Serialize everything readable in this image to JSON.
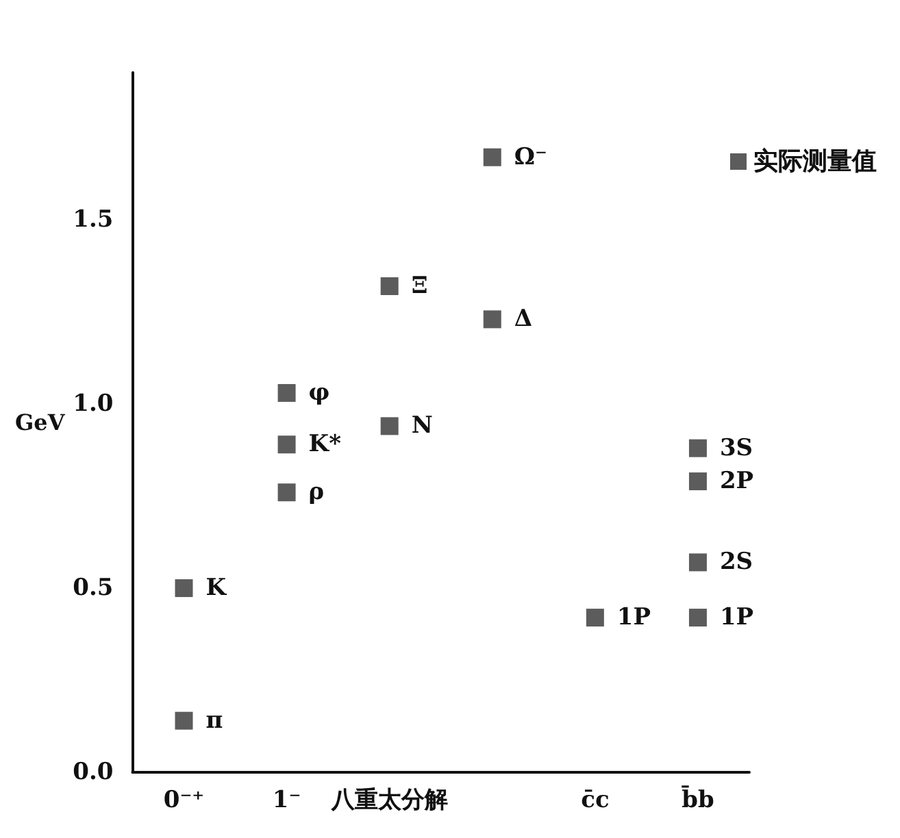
{
  "chart_data": {
    "type": "scatter",
    "ylabel": "GeV",
    "categories": [
      "0⁻⁺",
      "1⁻",
      "八重太分解",
      null,
      "c̄c",
      "b̄b"
    ],
    "series": [
      {
        "name": "实际测量值",
        "color": "#333333",
        "x": [
          "0⁻⁺",
          "0⁻⁺",
          "1⁻",
          "1⁻",
          "1⁻",
          "八重太分解",
          "八重太分解",
          null,
          null,
          "c̄c",
          "b̄b",
          "b̄b",
          "b̄b",
          "b̄b"
        ],
        "values": [
          0.14,
          0.5,
          0.76,
          0.89,
          1.03,
          0.94,
          1.32,
          1.23,
          1.67,
          0.42,
          0.42,
          0.57,
          0.79,
          0.88
        ]
      }
    ],
    "annotations": [
      {
        "text": "π",
        "x": "0⁻⁺",
        "y": 0.14
      },
      {
        "text": "K",
        "x": "0⁻⁺",
        "y": 0.5
      },
      {
        "text": "ρ",
        "x": "1⁻",
        "y": 0.76
      },
      {
        "text": "K*",
        "x": "1⁻",
        "y": 0.89
      },
      {
        "text": "φ",
        "x": "1⁻",
        "y": 1.03
      },
      {
        "text": "N",
        "x": "八重太分解",
        "y": 0.94
      },
      {
        "text": "Ξ",
        "x": "八重太分解",
        "y": 1.32
      },
      "Δ",
      "Ω⁻",
      {
        "text": "1P",
        "x": "c̄c",
        "y": 0.42
      },
      {
        "text": "1P",
        "x": "b̄b",
        "y": 0.42
      },
      {
        "text": "2S",
        "x": "b̄b",
        "y": 0.57
      },
      {
        "text": "2P",
        "x": "b̄b",
        "y": 0.79
      },
      {
        "text": "3S",
        "x": "b̄b",
        "y": 0.88
      }
    ],
    "ylim": [
      0,
      1.9
    ],
    "yticks": [
      {
        "value": 0,
        "label": "0.0"
      },
      0.5,
      {
        "value": 1,
        "label": "1.0"
      },
      1.5
    ],
    "marker": "square",
    "legend": "top right",
    "grid": false
  }
}
